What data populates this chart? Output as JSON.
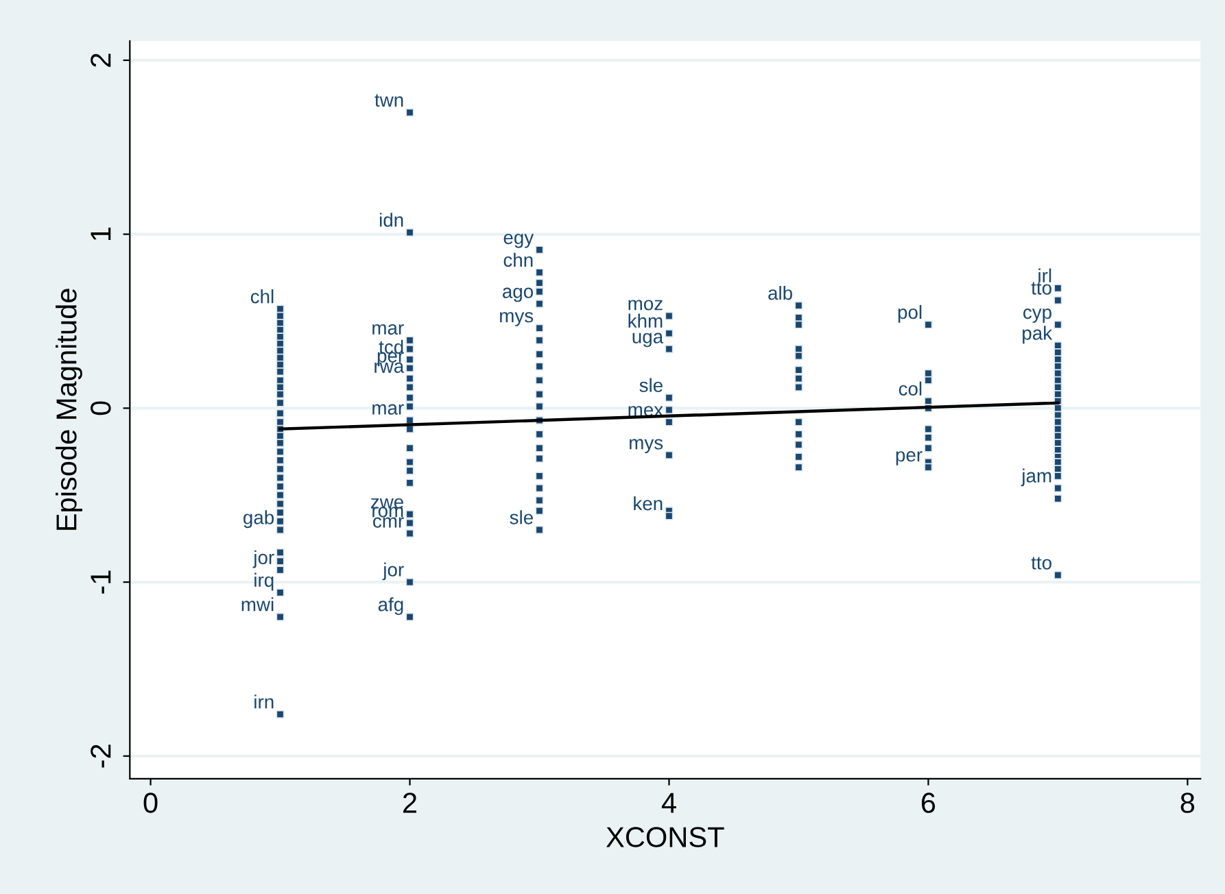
{
  "chart_data": {
    "type": "scatter",
    "xlabel": "XCONST",
    "ylabel": "Episode Magnitude",
    "xlim": [
      -0.16,
      8.1
    ],
    "ylim": [
      -2.13,
      2.11
    ],
    "xticks": [
      0,
      2,
      4,
      6,
      8
    ],
    "yticks": [
      -2,
      -1,
      0,
      1,
      2
    ],
    "grid": "y",
    "legend": false,
    "marker": "square",
    "series": [
      {
        "color": "#1a476f",
        "x": [
          1,
          1,
          1,
          1,
          1,
          1,
          1,
          1,
          1,
          1,
          1,
          1,
          1,
          1,
          1,
          1,
          1,
          1,
          1,
          1,
          1,
          1,
          1,
          1,
          1,
          1,
          1,
          1,
          1,
          1,
          1,
          1,
          1,
          1,
          1,
          2,
          2,
          2,
          2,
          2,
          2,
          2,
          2,
          2,
          2,
          2,
          2,
          2,
          2,
          2,
          2,
          2,
          2,
          2,
          2,
          2,
          3,
          3,
          3,
          3,
          3,
          3,
          3,
          3,
          3,
          3,
          3,
          3,
          3,
          3,
          3,
          3,
          3,
          3,
          3,
          3,
          3,
          4,
          4,
          4,
          4,
          4,
          4,
          4,
          4,
          4,
          5,
          5,
          5,
          5,
          5,
          5,
          5,
          5,
          5,
          5,
          5,
          5,
          5,
          6,
          6,
          6,
          6,
          6,
          6,
          6,
          6,
          6,
          6,
          7,
          7,
          7,
          7,
          7,
          7,
          7,
          7,
          7,
          7,
          7,
          7,
          7,
          7,
          7,
          7,
          7,
          7,
          7,
          7,
          7,
          7,
          7,
          7,
          7,
          7
        ],
        "values": [
          0.57,
          0.53,
          0.49,
          0.45,
          0.41,
          0.37,
          0.33,
          0.29,
          0.25,
          0.21,
          0.16,
          0.12,
          0.08,
          0.03,
          -0.03,
          -0.08,
          -0.12,
          -0.16,
          -0.2,
          -0.25,
          -0.3,
          -0.35,
          -0.4,
          -0.45,
          -0.5,
          -0.55,
          -0.6,
          -0.65,
          -0.7,
          -0.83,
          -0.88,
          -0.93,
          -1.06,
          -1.2,
          -1.76,
          1.7,
          1.01,
          0.39,
          0.34,
          0.28,
          0.23,
          0.17,
          0.12,
          0.06,
          0.01,
          -0.07,
          -0.12,
          -0.23,
          -0.31,
          -0.36,
          -0.43,
          -0.61,
          -0.66,
          -0.72,
          -1.0,
          -1.2,
          0.91,
          0.78,
          0.72,
          0.67,
          0.6,
          0.46,
          0.39,
          0.31,
          0.24,
          0.16,
          0.08,
          0.01,
          -0.07,
          -0.15,
          -0.23,
          -0.29,
          -0.39,
          -0.46,
          -0.53,
          -0.59,
          -0.7,
          0.53,
          0.43,
          0.34,
          0.06,
          -0.01,
          -0.08,
          -0.27,
          -0.59,
          -0.62,
          0.59,
          0.52,
          0.48,
          0.34,
          0.3,
          0.22,
          0.17,
          0.12,
          -0.08,
          -0.15,
          -0.21,
          -0.28,
          -0.34,
          0.48,
          0.2,
          0.16,
          0.04,
          0.0,
          -0.12,
          -0.17,
          -0.23,
          -0.31,
          -0.34,
          0.69,
          0.62,
          0.48,
          0.36,
          0.32,
          0.28,
          0.24,
          0.2,
          0.16,
          0.12,
          0.08,
          0.04,
          0.0,
          -0.04,
          -0.08,
          -0.12,
          -0.16,
          -0.2,
          -0.24,
          -0.28,
          -0.31,
          -0.35,
          -0.39,
          -0.46,
          -0.52,
          -0.96
        ]
      },
      {
        "type": "line",
        "color": "#000000",
        "marker": "none",
        "x": [
          1,
          7
        ],
        "values": [
          -0.12,
          0.03
        ]
      }
    ],
    "annotations": [
      {
        "text": "chl",
        "x": 1,
        "y": 0.57
      },
      {
        "text": "gab",
        "x": 1,
        "y": -0.7
      },
      {
        "text": "jor",
        "x": 1,
        "y": -0.93
      },
      {
        "text": "irq",
        "x": 1,
        "y": -1.06
      },
      {
        "text": "mwi",
        "x": 1,
        "y": -1.2
      },
      {
        "text": "irn",
        "x": 1,
        "y": -1.76
      },
      {
        "text": "twn",
        "x": 2,
        "y": 1.7
      },
      {
        "text": "idn",
        "x": 2,
        "y": 1.01
      },
      {
        "text": "mar",
        "x": 2,
        "y": 0.39
      },
      {
        "text": "tcd",
        "x": 2,
        "y": 0.28
      },
      {
        "text": "per",
        "x": 2,
        "y": 0.23
      },
      {
        "text": "rwa",
        "x": 2,
        "y": 0.17
      },
      {
        "text": "mar",
        "x": 2,
        "y": -0.07
      },
      {
        "text": "zwe",
        "x": 2,
        "y": -0.61
      },
      {
        "text": "rom",
        "x": 2,
        "y": -0.66
      },
      {
        "text": "cmr",
        "x": 2,
        "y": -0.72
      },
      {
        "text": "jor",
        "x": 2,
        "y": -1.0
      },
      {
        "text": "afg",
        "x": 2,
        "y": -1.2
      },
      {
        "text": "egy",
        "x": 3,
        "y": 0.91
      },
      {
        "text": "chn",
        "x": 3,
        "y": 0.78
      },
      {
        "text": "ago",
        "x": 3,
        "y": 0.6
      },
      {
        "text": "mys",
        "x": 3,
        "y": 0.46
      },
      {
        "text": "sle",
        "x": 3,
        "y": -0.7
      },
      {
        "text": "moz",
        "x": 4,
        "y": 0.53
      },
      {
        "text": "khm",
        "x": 4,
        "y": 0.43
      },
      {
        "text": "uga",
        "x": 4,
        "y": 0.34
      },
      {
        "text": "sle",
        "x": 4,
        "y": 0.06
      },
      {
        "text": "mex",
        "x": 4,
        "y": -0.08
      },
      {
        "text": "mys",
        "x": 4,
        "y": -0.27
      },
      {
        "text": "ken",
        "x": 4,
        "y": -0.62
      },
      {
        "text": "alb",
        "x": 5,
        "y": 0.59
      },
      {
        "text": "pol",
        "x": 6,
        "y": 0.48
      },
      {
        "text": "col",
        "x": 6,
        "y": 0.04
      },
      {
        "text": "per",
        "x": 6,
        "y": -0.34
      },
      {
        "text": "irl",
        "x": 7,
        "y": 0.69
      },
      {
        "text": "tto",
        "x": 7,
        "y": 0.62
      },
      {
        "text": "cyp",
        "x": 7,
        "y": 0.48
      },
      {
        "text": "pak",
        "x": 7,
        "y": 0.36
      },
      {
        "text": "jam",
        "x": 7,
        "y": -0.46
      },
      {
        "text": "tto",
        "x": 7,
        "y": -0.96
      }
    ]
  }
}
